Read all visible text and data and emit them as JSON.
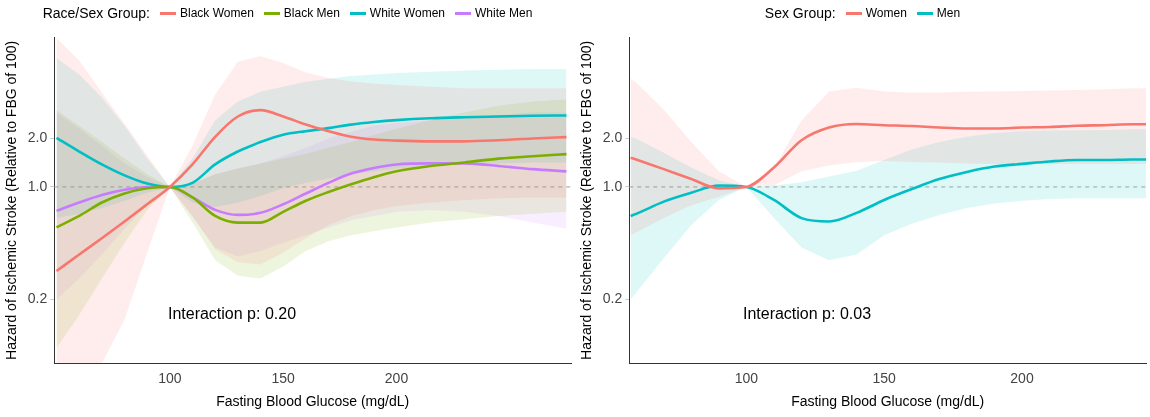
{
  "chart_data": [
    {
      "type": "line",
      "legend_title": "Race/Sex Group:",
      "xlabel": "Fasting Blood Glucose (mg/dL)",
      "ylabel": "Hazard of Ischemic Stroke (Relative to FBG of 100)",
      "legend": "top",
      "log": true,
      "xlim": [
        49,
        277
      ],
      "xticks": [
        100,
        150,
        200
      ],
      "ylim": [
        0.08,
        8.5
      ],
      "yticks": [
        {
          "value": 0.2,
          "label": "0.2"
        },
        {
          "value": 1,
          "label": "1.0"
        },
        {
          "value": 2,
          "label": "2.0"
        }
      ],
      "x": [
        50,
        60,
        70,
        80,
        90,
        100,
        110,
        120,
        130,
        140,
        150,
        160,
        170,
        180,
        190,
        200,
        215,
        230,
        245,
        260,
        275
      ],
      "series": [
        {
          "name": "Black Women",
          "color": "#f8766d",
          "values": [
            0.3,
            0.38,
            0.48,
            0.61,
            0.78,
            1.0,
            1.38,
            2.05,
            2.74,
            3.0,
            2.74,
            2.44,
            2.22,
            2.05,
            1.97,
            1.94,
            1.92,
            1.92,
            1.95,
            2.0,
            2.04
          ],
          "upper": [
            8.4,
            6.1,
            3.87,
            2.47,
            1.57,
            1.0,
            1.8,
            3.76,
            6.0,
            6.5,
            5.9,
            5.15,
            4.76,
            4.52,
            4.4,
            4.3,
            4.2,
            4.1,
            4.1,
            4.1,
            4.1
          ],
          "lower": [
            0.08,
            0.08,
            0.08,
            0.15,
            0.39,
            1.0,
            0.66,
            0.41,
            0.34,
            0.33,
            0.39,
            0.48,
            0.58,
            0.66,
            0.72,
            0.76,
            0.8,
            0.83,
            0.85,
            0.86,
            0.86
          ]
        },
        {
          "name": "Black Men",
          "color": "#7cae00",
          "values": [
            0.56,
            0.66,
            0.8,
            0.91,
            0.98,
            1.0,
            0.86,
            0.66,
            0.6,
            0.6,
            0.7,
            0.82,
            0.93,
            1.04,
            1.15,
            1.25,
            1.35,
            1.42,
            1.5,
            1.55,
            1.6
          ],
          "upper": [
            3.0,
            2.4,
            1.9,
            1.5,
            1.2,
            1.0,
            1.05,
            1.2,
            1.3,
            1.4,
            1.5,
            1.6,
            1.75,
            1.9,
            2.1,
            2.3,
            2.6,
            2.9,
            3.2,
            3.4,
            3.5
          ],
          "lower": [
            0.1,
            0.16,
            0.27,
            0.45,
            0.72,
            1.0,
            0.6,
            0.35,
            0.28,
            0.27,
            0.32,
            0.4,
            0.46,
            0.5,
            0.53,
            0.56,
            0.6,
            0.63,
            0.66,
            0.68,
            0.7
          ]
        },
        {
          "name": "White Women",
          "color": "#00bfc4",
          "values": [
            2.02,
            1.66,
            1.38,
            1.18,
            1.05,
            1.0,
            1.06,
            1.38,
            1.66,
            1.9,
            2.11,
            2.22,
            2.32,
            2.44,
            2.53,
            2.6,
            2.67,
            2.71,
            2.74,
            2.77,
            2.78
          ],
          "upper": [
            6.3,
            5.0,
            3.6,
            2.4,
            1.5,
            1.0,
            1.5,
            2.6,
            3.4,
            3.9,
            4.2,
            4.5,
            4.7,
            4.9,
            5.0,
            5.1,
            5.2,
            5.3,
            5.35,
            5.4,
            5.4
          ],
          "lower": [
            0.64,
            0.68,
            0.74,
            0.82,
            0.92,
            1.0,
            0.8,
            0.75,
            0.8,
            0.88,
            0.98,
            1.06,
            1.13,
            1.2,
            1.25,
            1.3,
            1.35,
            1.38,
            1.4,
            1.42,
            1.42
          ]
        },
        {
          "name": "White Men",
          "color": "#c77cff",
          "values": [
            0.71,
            0.8,
            0.89,
            0.96,
            1.0,
            1.0,
            0.86,
            0.72,
            0.67,
            0.69,
            0.78,
            0.91,
            1.06,
            1.21,
            1.31,
            1.38,
            1.4,
            1.4,
            1.35,
            1.29,
            1.25
          ],
          "upper": [
            2.9,
            2.3,
            1.8,
            1.4,
            1.15,
            1.0,
            1.05,
            1.2,
            1.3,
            1.4,
            1.55,
            1.75,
            2.0,
            2.2,
            2.4,
            2.5,
            2.6,
            2.7,
            2.8,
            2.9,
            2.9
          ],
          "lower": [
            0.2,
            0.27,
            0.38,
            0.55,
            0.78,
            1.0,
            0.65,
            0.42,
            0.37,
            0.4,
            0.45,
            0.5,
            0.56,
            0.62,
            0.66,
            0.7,
            0.72,
            0.7,
            0.66,
            0.6,
            0.55
          ]
        }
      ],
      "ref_lines": [
        {
          "axis": "y",
          "value": 1,
          "color": "#a0a0a0",
          "line_style": "dashed"
        }
      ],
      "annotations": [
        "Interaction p: 0.20"
      ]
    },
    {
      "type": "line",
      "legend_title": "Sex Group:",
      "xlabel": "Fasting Blood Glucose (mg/dL)",
      "ylabel": "Hazard of Ischemic Stroke (Relative to FBG of 100)",
      "legend": "top",
      "log": true,
      "xlim": [
        57.5,
        245
      ],
      "xticks": [
        100,
        150,
        200
      ],
      "ylim": [
        0.08,
        8.5
      ],
      "yticks": [
        {
          "value": 0.2,
          "label": "0.2"
        },
        {
          "value": 1,
          "label": "1.0"
        },
        {
          "value": 2,
          "label": "2.0"
        }
      ],
      "x": [
        58,
        60,
        70,
        80,
        90,
        100,
        110,
        120,
        130,
        140,
        150,
        160,
        170,
        180,
        190,
        200,
        210,
        220,
        230,
        240,
        245
      ],
      "series": [
        {
          "name": "Women",
          "color": "#f8766d",
          "values": [
            1.52,
            1.48,
            1.29,
            1.12,
            0.98,
            1.0,
            1.32,
            1.95,
            2.34,
            2.46,
            2.42,
            2.39,
            2.34,
            2.31,
            2.31,
            2.34,
            2.36,
            2.4,
            2.42,
            2.45,
            2.45
          ],
          "upper": [
            4.7,
            4.46,
            3.03,
            1.9,
            1.25,
            1.0,
            1.32,
            2.59,
            3.92,
            4.13,
            3.92,
            3.85,
            3.87,
            3.9,
            3.92,
            3.95,
            3.98,
            4.0,
            4.05,
            4.1,
            4.1
          ],
          "lower": [
            0.5,
            0.52,
            0.64,
            0.77,
            0.87,
            1.0,
            1.02,
            1.25,
            1.36,
            1.43,
            1.45,
            1.43,
            1.42,
            1.4,
            1.39,
            1.39,
            1.39,
            1.39,
            1.39,
            1.39,
            1.39
          ]
        },
        {
          "name": "Men",
          "color": "#00bfc4",
          "values": [
            0.66,
            0.68,
            0.81,
            0.92,
            1.02,
            1.0,
            0.83,
            0.64,
            0.61,
            0.69,
            0.83,
            0.97,
            1.12,
            1.24,
            1.34,
            1.39,
            1.44,
            1.47,
            1.47,
            1.48,
            1.48
          ],
          "upper": [
            2.05,
            2.0,
            1.63,
            1.32,
            1.1,
            1.0,
            1.02,
            1.07,
            1.16,
            1.26,
            1.47,
            1.71,
            1.9,
            2.05,
            2.16,
            2.22,
            2.24,
            2.25,
            2.26,
            2.28,
            2.28
          ],
          "lower": [
            0.2,
            0.22,
            0.36,
            0.58,
            0.83,
            1.0,
            0.64,
            0.42,
            0.35,
            0.38,
            0.5,
            0.59,
            0.67,
            0.74,
            0.79,
            0.82,
            0.84,
            0.85,
            0.85,
            0.85,
            0.85
          ]
        }
      ],
      "ref_lines": [
        {
          "axis": "y",
          "value": 1,
          "color": "#a0a0a0",
          "line_style": "dashed"
        }
      ],
      "annotations": [
        "Interaction p: 0.03"
      ]
    }
  ]
}
